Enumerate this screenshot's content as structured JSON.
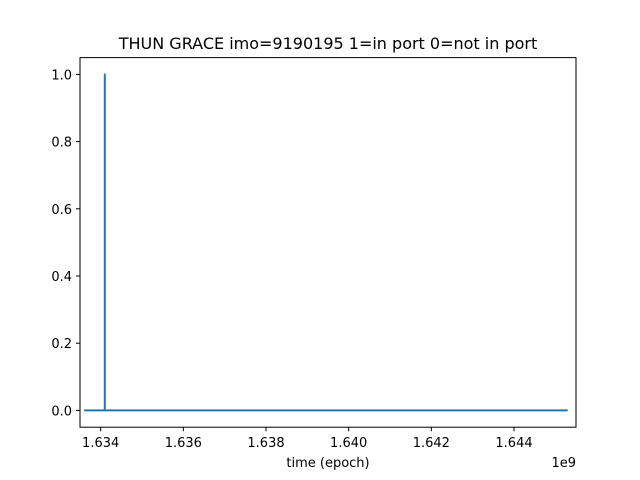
{
  "chart_data": {
    "type": "line",
    "title": "THUN GRACE imo=9190195 1=in port 0=not in port",
    "xlabel": "time (epoch)",
    "ylabel": "",
    "x_offset_label": "1e9",
    "xlim": [
      1.6335,
      1.6455
    ],
    "ylim": [
      -0.05,
      1.05
    ],
    "xticks": [
      1.634,
      1.636,
      1.638,
      1.64,
      1.642,
      1.644
    ],
    "xtick_labels": [
      "1.634",
      "1.636",
      "1.638",
      "1.640",
      "1.642",
      "1.644"
    ],
    "yticks": [
      0.0,
      0.2,
      0.4,
      0.6,
      0.8,
      1.0
    ],
    "ytick_labels": [
      "0.0",
      "0.2",
      "0.4",
      "0.6",
      "0.8",
      "1.0"
    ],
    "grid": false,
    "series": [
      {
        "color": "#1f77b4",
        "x": [
          1.6336,
          1.6341,
          1.6341,
          1.6341,
          1.6341,
          1.6453
        ],
        "y": [
          0,
          0,
          1,
          1,
          0,
          0
        ]
      }
    ]
  }
}
